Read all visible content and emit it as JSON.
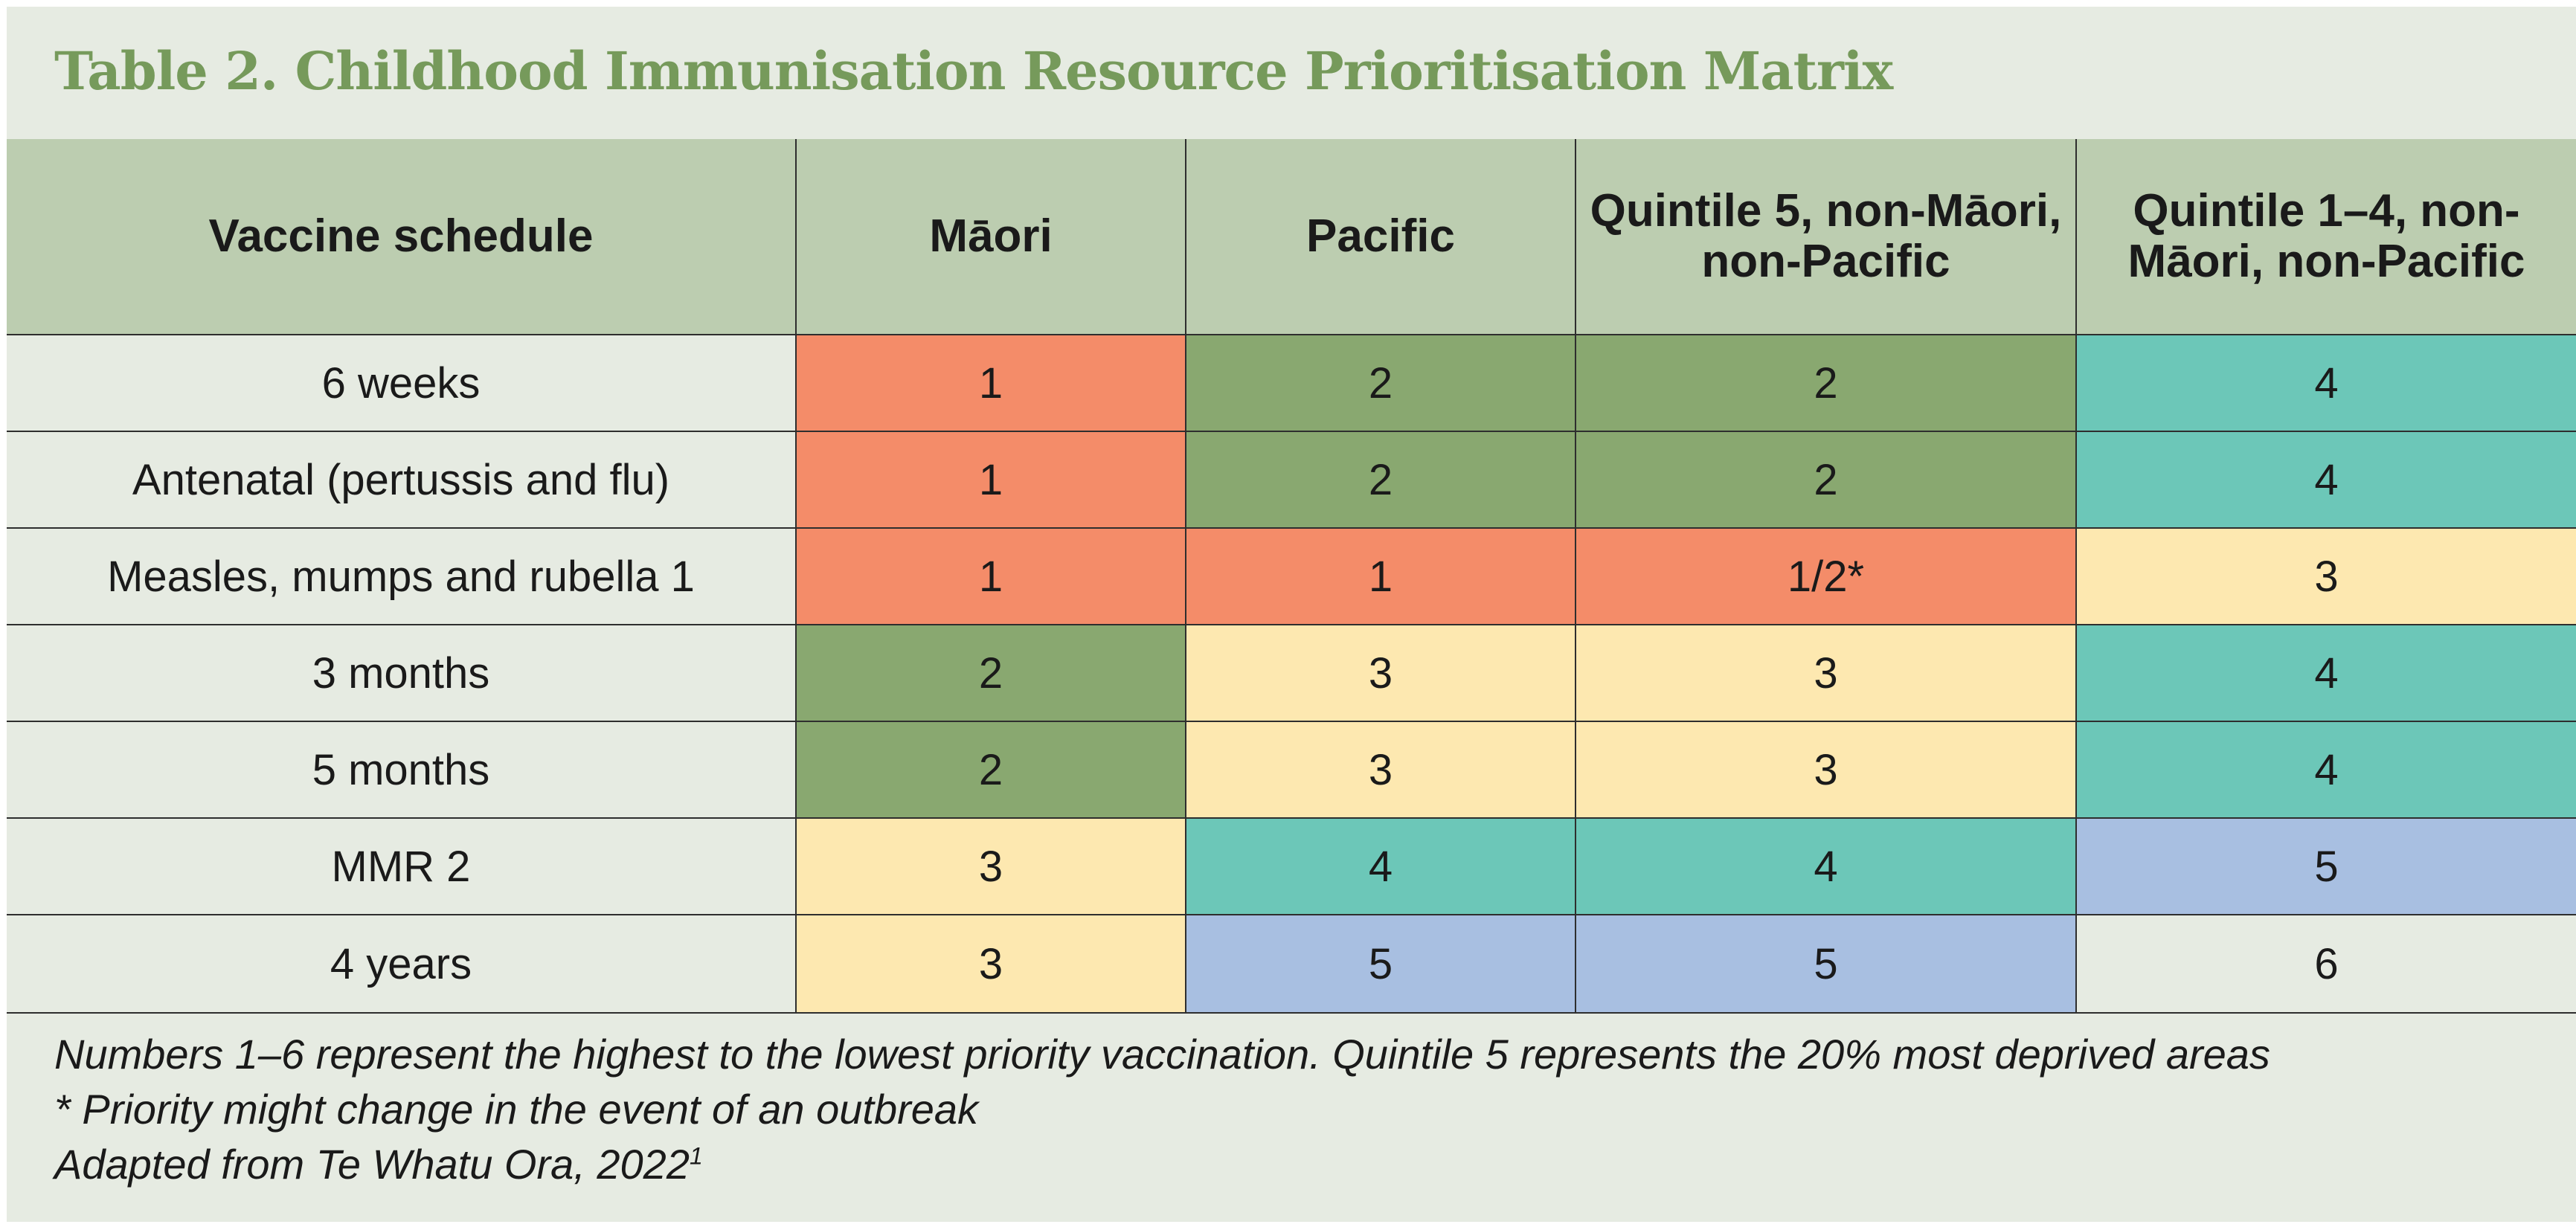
{
  "title": "Table 2. Childhood Immunisation Resource Prioritisation Matrix",
  "colors": {
    "title": "#769a5b",
    "background": "#e6ebe2",
    "header": "#bccdb0",
    "priority_1": "#f48c69",
    "priority_2": "#89a870",
    "priority_3": "#fde8b0",
    "priority_4": "#6cc7b8",
    "priority_5": "#a8bfe1",
    "priority_6": "#e6ebe2"
  },
  "table": {
    "headers": [
      "Vaccine schedule",
      "Māori",
      "Pacific",
      "Quintile 5, non-Māori, non-Pacific",
      "Quintile 1–4, non-Māori, non-Pacific"
    ],
    "rows": [
      {
        "schedule": "6 weeks",
        "cells": [
          "1",
          "2",
          "2",
          "4"
        ],
        "priority": [
          1,
          2,
          2,
          4
        ]
      },
      {
        "schedule": "Antenatal (pertussis and flu)",
        "cells": [
          "1",
          "2",
          "2",
          "4"
        ],
        "priority": [
          1,
          2,
          2,
          4
        ]
      },
      {
        "schedule": "Measles, mumps and rubella 1",
        "cells": [
          "1",
          "1",
          "1/2*",
          "3"
        ],
        "priority": [
          1,
          1,
          1,
          3
        ]
      },
      {
        "schedule": "3 months",
        "cells": [
          "2",
          "3",
          "3",
          "4"
        ],
        "priority": [
          2,
          3,
          3,
          4
        ]
      },
      {
        "schedule": "5 months",
        "cells": [
          "2",
          "3",
          "3",
          "4"
        ],
        "priority": [
          2,
          3,
          3,
          4
        ]
      },
      {
        "schedule": "MMR 2",
        "cells": [
          "3",
          "4",
          "4",
          "5"
        ],
        "priority": [
          3,
          4,
          4,
          5
        ]
      },
      {
        "schedule": "4 years",
        "cells": [
          "3",
          "5",
          "5",
          "6"
        ],
        "priority": [
          3,
          5,
          5,
          6
        ]
      }
    ]
  },
  "notes": {
    "line1": "Numbers 1–6 represent the highest to the lowest priority vaccination. Quintile 5 represents the 20% most deprived areas",
    "line2": "* Priority might change in the event of an outbreak",
    "line3_text": "Adapted from Te Whatu Ora, 2022",
    "line3_ref": "1"
  }
}
